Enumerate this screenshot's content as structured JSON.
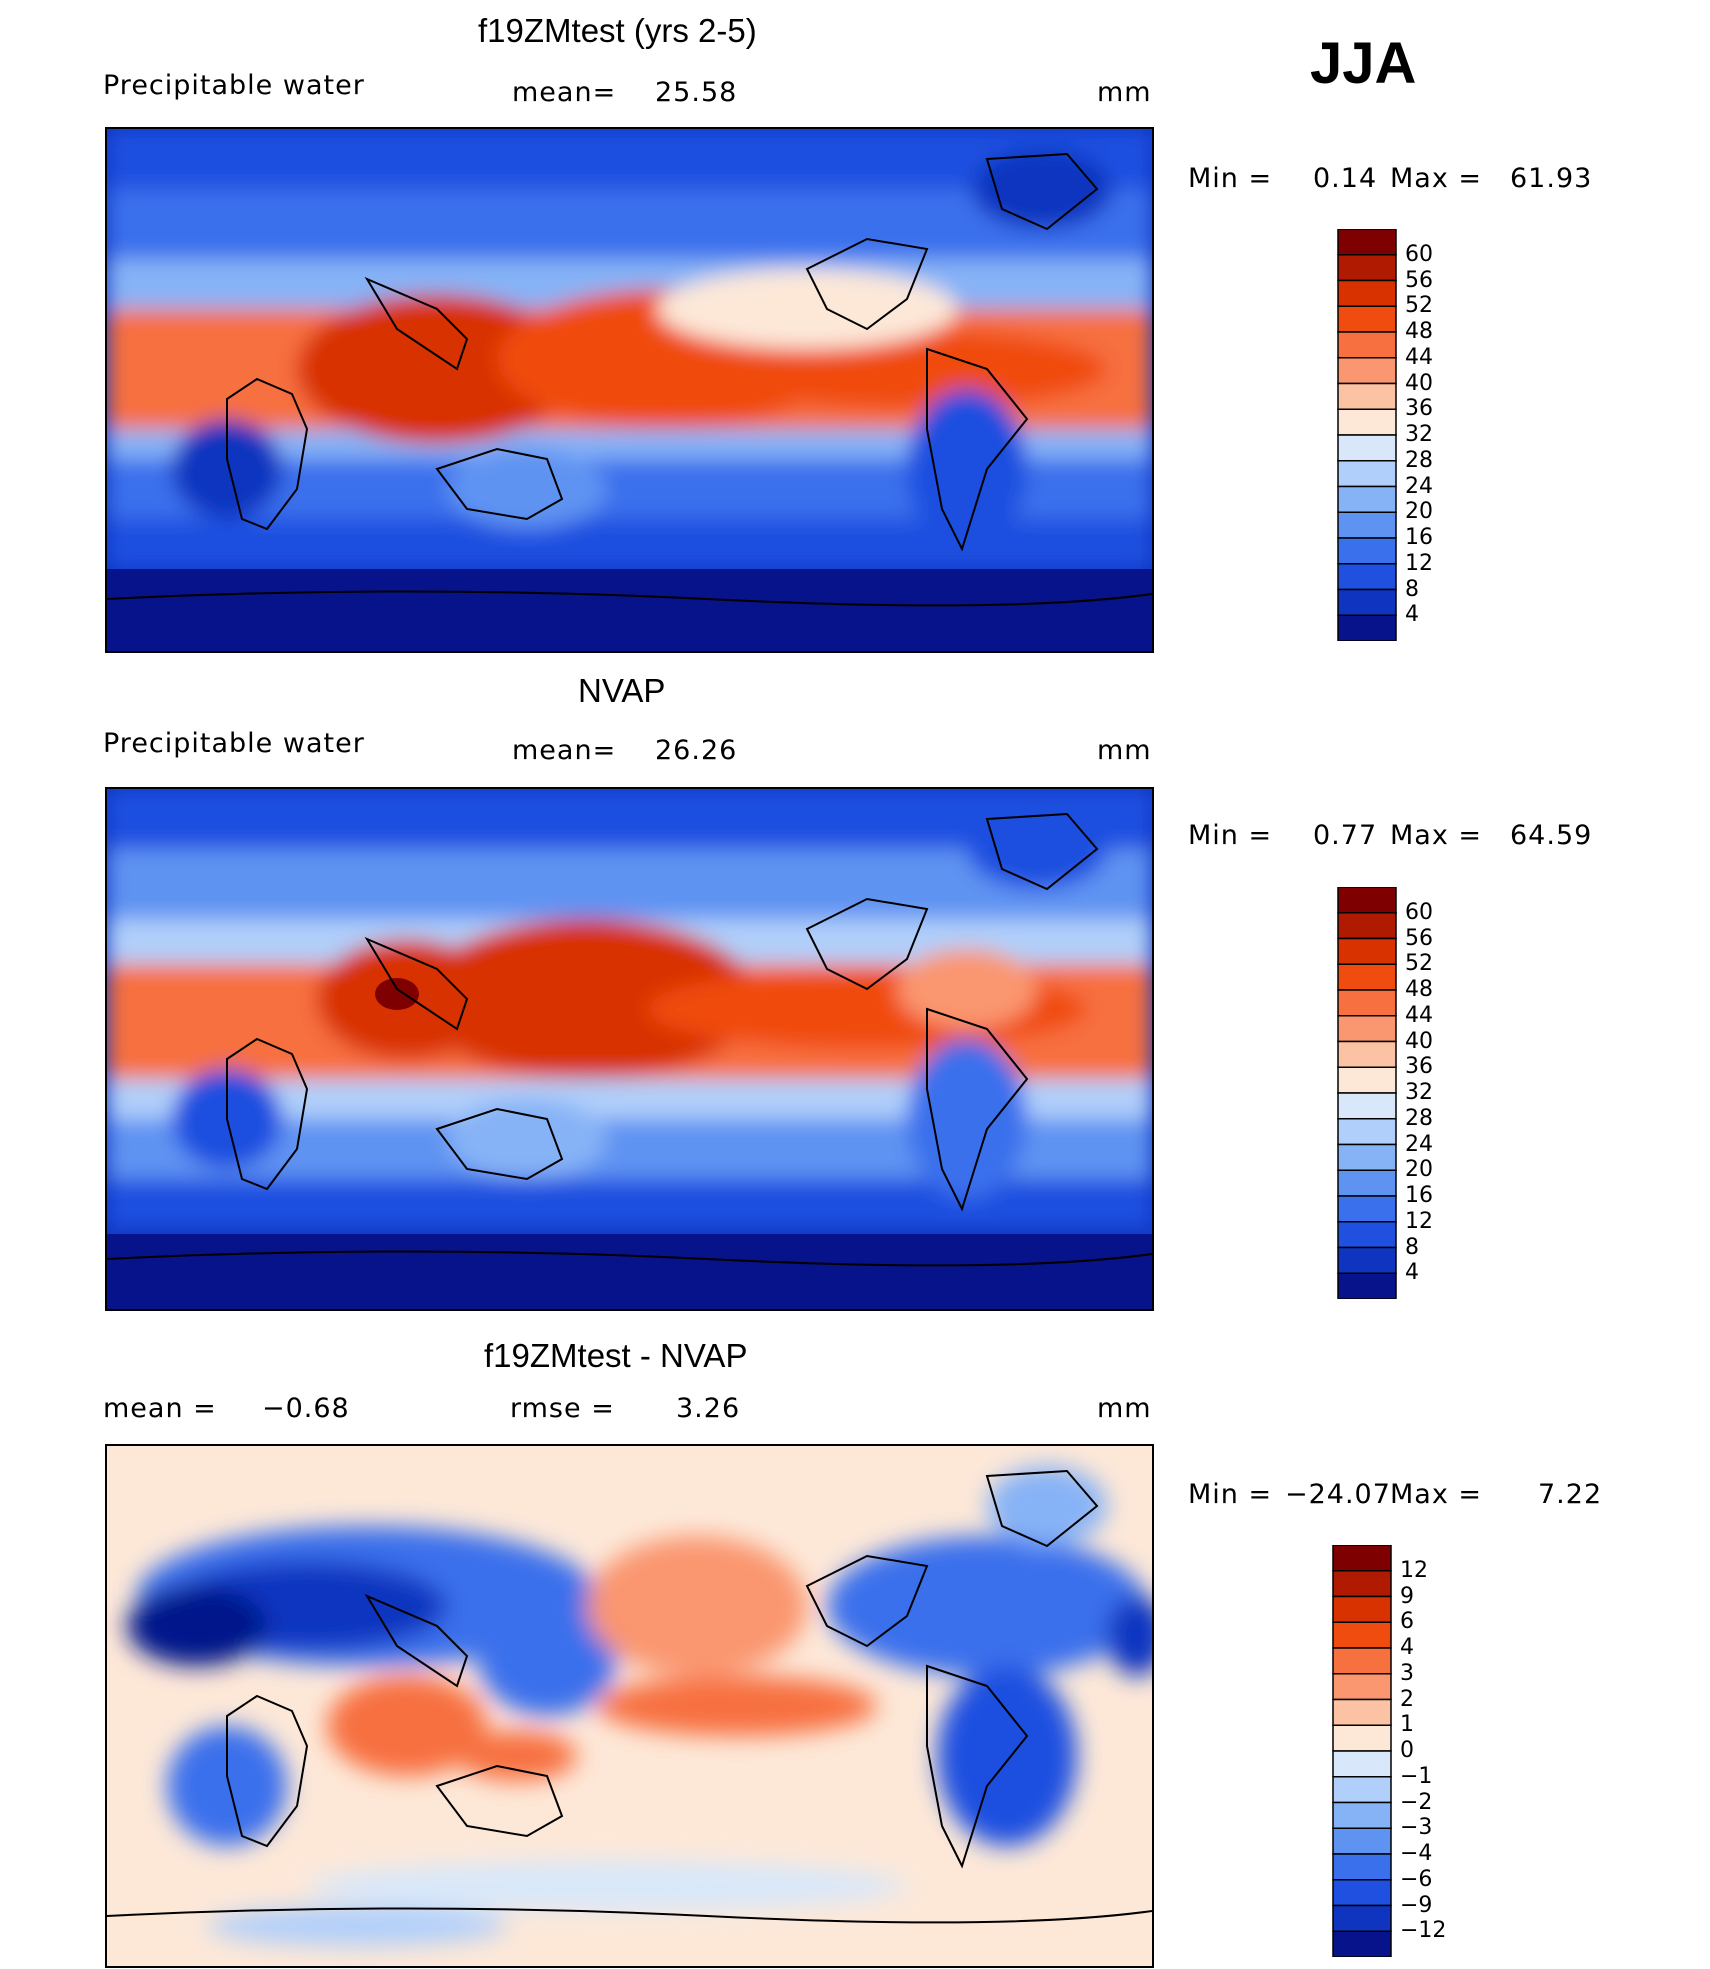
{
  "season": "JJA",
  "panels": [
    {
      "title": "f19ZMtest (yrs 2-5)",
      "left_label": "Precipitable  water",
      "mid_label": "mean=",
      "mid_value": "25.58",
      "units": "mm",
      "min_label": "Min  =",
      "min_value": "0.14",
      "max_label": "Max  =",
      "max_value": "61.93",
      "colorbar": {
        "levels": [
          "60",
          "56",
          "52",
          "48",
          "44",
          "40",
          "36",
          "32",
          "28",
          "24",
          "20",
          "16",
          "12",
          "8",
          "4"
        ],
        "colors": [
          "#7f0000",
          "#b01a00",
          "#d83200",
          "#f04c10",
          "#f77040",
          "#fa9670",
          "#fcc2a4",
          "#fde8d8",
          "#d8e8fa",
          "#b0cffa",
          "#86b2f6",
          "#5f93f2",
          "#3a70ec",
          "#1f50e0",
          "#0f35c0",
          "#06138a"
        ]
      }
    },
    {
      "title": "NVAP",
      "left_label": "Precipitable  water",
      "mid_label": "mean=",
      "mid_value": "26.26",
      "units": "mm",
      "min_label": "Min  =",
      "min_value": "0.77",
      "max_label": "Max  =",
      "max_value": "64.59",
      "colorbar": {
        "levels": [
          "60",
          "56",
          "52",
          "48",
          "44",
          "40",
          "36",
          "32",
          "28",
          "24",
          "20",
          "16",
          "12",
          "8",
          "4"
        ],
        "colors": [
          "#7f0000",
          "#b01a00",
          "#d83200",
          "#f04c10",
          "#f77040",
          "#fa9670",
          "#fcc2a4",
          "#fde8d8",
          "#d8e8fa",
          "#b0cffa",
          "#86b2f6",
          "#5f93f2",
          "#3a70ec",
          "#1f50e0",
          "#0f35c0",
          "#06138a"
        ]
      }
    },
    {
      "title": "f19ZMtest - NVAP",
      "left_label": "mean  =",
      "left_value": "−0.68",
      "mid_label": "rmse  =",
      "mid_value": "3.26",
      "units": "mm",
      "min_label": "Min  =",
      "min_value": "−24.07",
      "max_label": "Max  =",
      "max_value": "7.22",
      "colorbar": {
        "levels": [
          "12",
          "9",
          "6",
          "4",
          "3",
          "2",
          "1",
          "0",
          "−1",
          "−2",
          "−3",
          "−4",
          "−6",
          "−9",
          "−12"
        ],
        "colors": [
          "#7f0000",
          "#b01a00",
          "#d83200",
          "#f04c10",
          "#f77040",
          "#fa9670",
          "#fcc2a4",
          "#fde8d8",
          "#d8e8fa",
          "#b0cffa",
          "#86b2f6",
          "#5f93f2",
          "#3a70ec",
          "#1f50e0",
          "#0f35c0",
          "#06138a"
        ]
      }
    }
  ]
}
